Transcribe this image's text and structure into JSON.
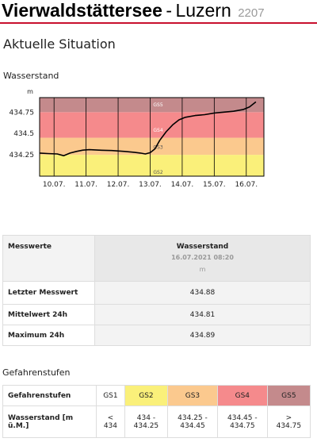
{
  "header": {
    "lake": "Vierwaldstättersee",
    "separator": "-",
    "city": "Luzern",
    "station_number": "2207"
  },
  "situation": {
    "heading": "Aktuelle Situation"
  },
  "wasserstand": {
    "heading": "Wasserstand"
  },
  "chart_data": {
    "type": "line",
    "title": "",
    "ylabel": "m",
    "xlabel": "",
    "ylim": [
      434.0,
      434.92
    ],
    "y_ticks": [
      434.25,
      434.5,
      434.75
    ],
    "y_tick_labels": [
      "434.25",
      "434.5",
      "434.75"
    ],
    "x_range": [
      9.55,
      16.55
    ],
    "x_ticks": [
      10,
      11,
      12,
      13,
      14,
      15,
      16
    ],
    "x_tick_labels": [
      "10.07.",
      "11.07.",
      "12.07.",
      "13.07.",
      "14.07.",
      "15.07.",
      "16.07."
    ],
    "grid": "vertical",
    "bands": [
      {
        "name": "GS2",
        "from": 434.0,
        "to": 434.25,
        "color": "#faf07a"
      },
      {
        "name": "GS3",
        "from": 434.25,
        "to": 434.45,
        "color": "#fbc98e"
      },
      {
        "name": "GS4",
        "from": 434.45,
        "to": 434.75,
        "color": "#f58a8c"
      },
      {
        "name": "GS5",
        "from": 434.75,
        "to": 434.92,
        "color": "#c48a8c"
      }
    ],
    "series": [
      {
        "values_x": [
          9.55,
          9.8,
          10.1,
          10.3,
          10.5,
          10.7,
          10.9,
          11.1,
          11.4,
          11.8,
          12.2,
          12.5,
          12.7,
          12.85,
          13.0,
          13.15,
          13.3,
          13.5,
          13.7,
          13.9,
          14.1,
          14.4,
          14.7,
          15.0,
          15.3,
          15.6,
          15.9,
          16.1,
          16.3
        ],
        "values_y": [
          434.27,
          434.265,
          434.26,
          434.24,
          434.27,
          434.29,
          434.305,
          434.31,
          434.305,
          434.3,
          434.29,
          434.28,
          434.27,
          434.26,
          434.275,
          434.32,
          434.42,
          434.52,
          434.6,
          434.66,
          434.69,
          434.71,
          434.72,
          434.74,
          434.75,
          434.76,
          434.78,
          434.81,
          434.87
        ]
      }
    ]
  },
  "messwerte": {
    "header_label": "Messwerte",
    "column_title": "Wasserstand",
    "column_date": "16.07.2021 08:20",
    "column_unit": "m",
    "rows": [
      {
        "label": "Letzter Messwert",
        "value": "434.88"
      },
      {
        "label": "Mittelwert 24h",
        "value": "434.81"
      },
      {
        "label": "Maximum 24h",
        "value": "434.89"
      }
    ]
  },
  "gefahrenstufen": {
    "heading": "Gefahrenstufen",
    "header_label": "Gefahrenstufen",
    "row_label": "Wasserstand [m ü.M.]",
    "levels": [
      {
        "name": "GS1",
        "color": "#ffffff",
        "range_line1": "<",
        "range_line2": "434"
      },
      {
        "name": "GS2",
        "color": "#faf07a",
        "range_line1": "434 -",
        "range_line2": "434.25"
      },
      {
        "name": "GS3",
        "color": "#fbc98e",
        "range_line1": "434.25 -",
        "range_line2": "434.45"
      },
      {
        "name": "GS4",
        "color": "#f58a8c",
        "range_line1": "434.45 -",
        "range_line2": "434.75"
      },
      {
        "name": "GS5",
        "color": "#c48a8c",
        "range_line1": ">",
        "range_line2": "434.75"
      }
    ]
  }
}
